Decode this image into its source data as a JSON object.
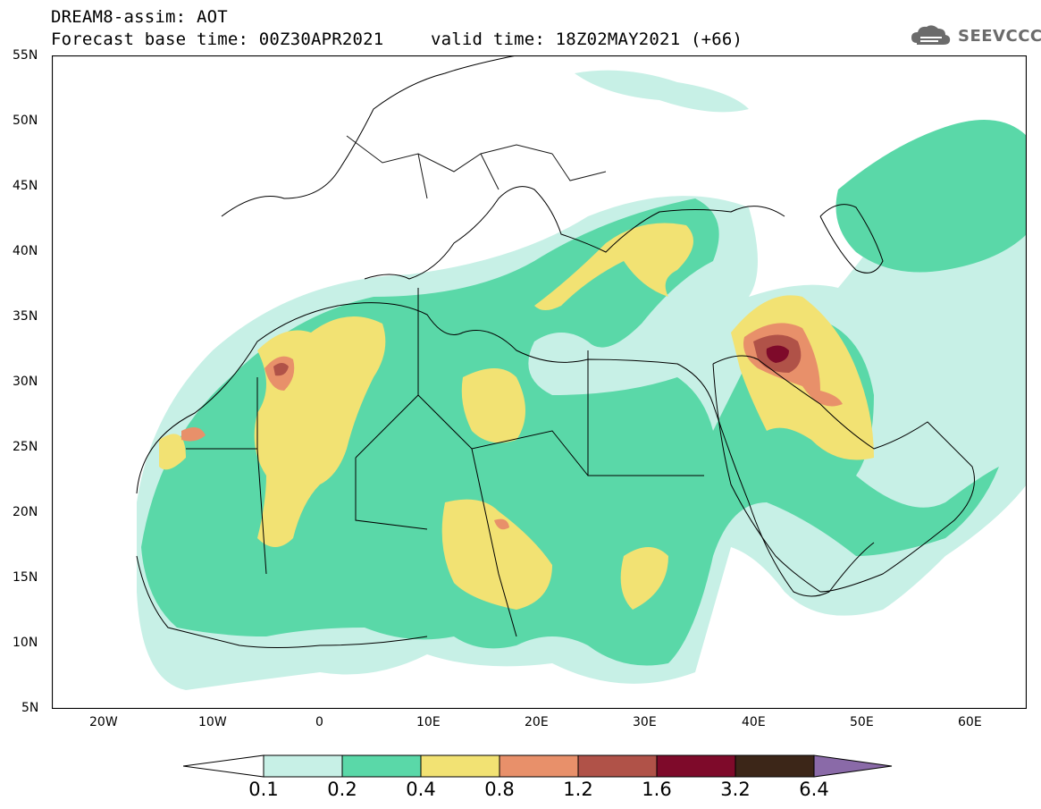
{
  "header": {
    "line1": "DREAM8-assim: AOT",
    "base_time": "Forecast base time: 00Z30APR2021",
    "valid_time": "valid time: 18Z02MAY2021 (+66)"
  },
  "logo": {
    "text": "SEEVCCC",
    "icon": "cloud-icon"
  },
  "map": {
    "lat_labels": [
      "55N",
      "50N",
      "45N",
      "40N",
      "35N",
      "30N",
      "25N",
      "20N",
      "15N",
      "10N",
      "5N"
    ],
    "lon_labels": [
      "20W",
      "10W",
      "0",
      "10E",
      "20E",
      "30E",
      "40E",
      "50E",
      "60E"
    ],
    "lon_range": [
      -25,
      65
    ],
    "lat_range": [
      5,
      55
    ]
  },
  "colorbar": {
    "labels": [
      "0.1",
      "0.2",
      "0.4",
      "0.8",
      "1.2",
      "1.6",
      "3.2",
      "6.4"
    ],
    "colors": [
      "#ffffff",
      "#c7f0e6",
      "#5ad8a8",
      "#f2e273",
      "#e8906a",
      "#b05248",
      "#7e0a2a",
      "#3c2618",
      "#8a6aa8"
    ]
  }
}
